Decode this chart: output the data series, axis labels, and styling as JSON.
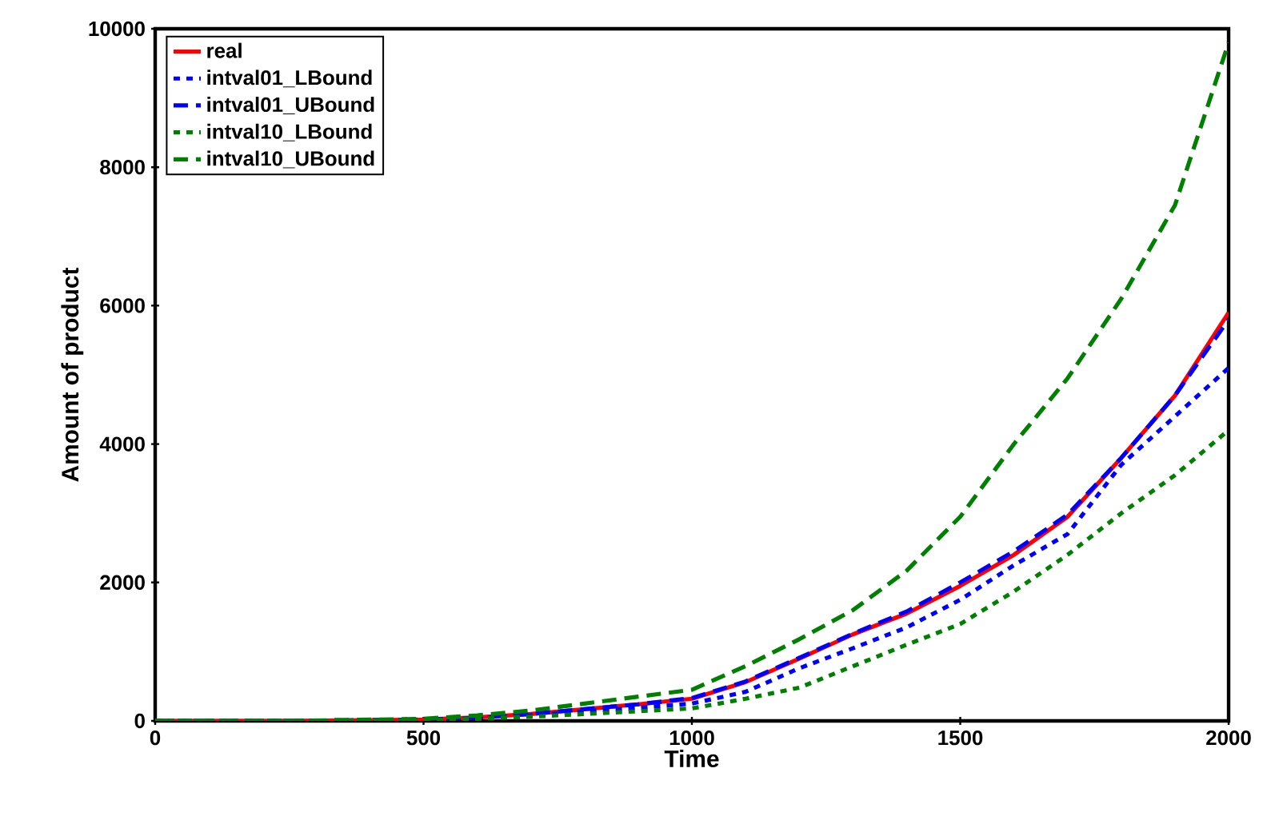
{
  "chart_data": {
    "type": "line",
    "xlabel": "Time",
    "ylabel": "Amount of product",
    "xlim": [
      0,
      2000
    ],
    "ylim": [
      0,
      10000
    ],
    "xticks": [
      0,
      500,
      1000,
      1500,
      2000
    ],
    "yticks": [
      0,
      2000,
      4000,
      6000,
      8000,
      10000
    ],
    "grid": false,
    "legend": "top left",
    "marker": "none",
    "x": [
      0,
      250,
      500,
      600,
      700,
      800,
      900,
      1000,
      1100,
      1200,
      1300,
      1400,
      1500,
      1600,
      1700,
      1800,
      1900,
      2000
    ],
    "series": [
      {
        "name": "real",
        "color": "#ff0000",
        "line_style": "solid",
        "values": [
          0,
          0,
          20,
          50,
          100,
          170,
          240,
          320,
          560,
          900,
          1250,
          1550,
          1950,
          2400,
          2950,
          3800,
          4700,
          5900
        ]
      },
      {
        "name": "intval01_LBound",
        "color": "#0000ff",
        "line_style": "dotted",
        "values": [
          0,
          0,
          20,
          40,
          80,
          140,
          190,
          250,
          420,
          760,
          1050,
          1350,
          1750,
          2250,
          2700,
          3700,
          4400,
          5100
        ]
      },
      {
        "name": "intval01_UBound",
        "color": "#0000ff",
        "line_style": "dashed",
        "values": [
          0,
          0,
          20,
          50,
          100,
          170,
          240,
          330,
          570,
          910,
          1260,
          1580,
          2000,
          2450,
          2980,
          3800,
          4700,
          5800
        ]
      },
      {
        "name": "intval10_LBound",
        "color": "#008000",
        "line_style": "dotted",
        "values": [
          0,
          0,
          10,
          30,
          60,
          100,
          140,
          180,
          320,
          480,
          790,
          1100,
          1400,
          1870,
          2400,
          3000,
          3550,
          4200
        ]
      },
      {
        "name": "intval10_UBound",
        "color": "#008000",
        "line_style": "dashed",
        "values": [
          0,
          0,
          30,
          80,
          150,
          250,
          350,
          450,
          790,
          1180,
          1600,
          2170,
          2950,
          4000,
          4950,
          6100,
          7450,
          9800
        ]
      }
    ]
  }
}
